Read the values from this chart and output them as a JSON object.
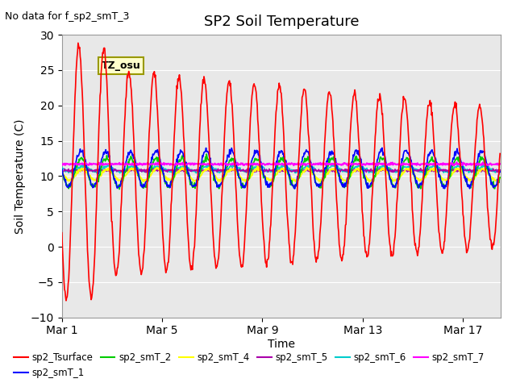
{
  "title": "SP2 Soil Temperature",
  "subtitle": "No data for f_sp2_smT_3",
  "xlabel": "Time",
  "ylabel": "Soil Temperature (C)",
  "ylim": [
    -10,
    30
  ],
  "xlim": [
    0,
    17.5
  ],
  "xtick_labels": [
    "Mar 1",
    "Mar 5",
    "Mar 9",
    "Mar 13",
    "Mar 17"
  ],
  "xtick_positions": [
    0,
    4,
    8,
    12,
    16
  ],
  "ytick_positions": [
    -10,
    -5,
    0,
    5,
    10,
    15,
    20,
    25,
    30
  ],
  "bg_color": "#e8e8e8",
  "series": {
    "sp2_Tsurface": {
      "color": "#ff0000",
      "lw": 1.2
    },
    "sp2_smT_1": {
      "color": "#0000ff",
      "lw": 1.2
    },
    "sp2_smT_2": {
      "color": "#00cc00",
      "lw": 1.2
    },
    "sp2_smT_4": {
      "color": "#ffff00",
      "lw": 1.5
    },
    "sp2_smT_5": {
      "color": "#aa00aa",
      "lw": 1.2
    },
    "sp2_smT_6": {
      "color": "#00cccc",
      "lw": 1.2
    },
    "sp2_smT_7": {
      "color": "#ff00ff",
      "lw": 1.5
    }
  },
  "tz_label": "TZ_osu",
  "tz_bg": "#ffffcc",
  "tz_border": "#999900"
}
